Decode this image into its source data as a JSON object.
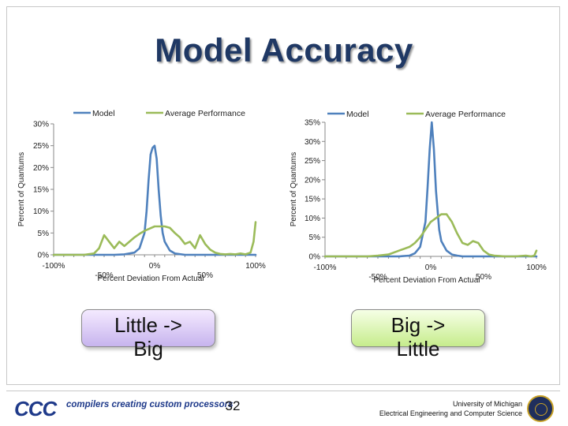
{
  "slide": {
    "title": "Model Accuracy",
    "page_number": "32",
    "callouts": {
      "left": [
        "Little ->",
        "Big"
      ],
      "right": [
        "Big ->",
        "Little"
      ]
    },
    "footer": {
      "logo_text": "CCC",
      "tagline": "compilers creating custom processors",
      "university_line1": "University of Michigan",
      "university_line2": "Electrical Engineering and Computer Science"
    }
  },
  "colors": {
    "model": "#4f81bd",
    "average_performance": "#9bbb59",
    "title": "#1f3864"
  },
  "chart_data": [
    {
      "type": "line",
      "xlabel": "Percent Deviation From Actual",
      "ylabel": "Percent of Quantums",
      "xlim": [
        -100,
        100
      ],
      "ylim": [
        0,
        30
      ],
      "x_ticks": [
        -100,
        -50,
        0,
        50,
        100
      ],
      "x_tick_labels": [
        "-100%",
        "-50%",
        "0%",
        "50%",
        "100%"
      ],
      "y_ticks": [
        0,
        5,
        10,
        15,
        20,
        25,
        30
      ],
      "y_tick_labels": [
        "0%",
        "5%",
        "10%",
        "15%",
        "20%",
        "25%",
        "30%"
      ],
      "legend": "top",
      "grid": false,
      "series": [
        {
          "name": "Model",
          "color": "#4f81bd",
          "x": [
            -100,
            -80,
            -60,
            -40,
            -30,
            -20,
            -15,
            -10,
            -8,
            -6,
            -4,
            -2,
            0,
            2,
            4,
            6,
            8,
            10,
            15,
            20,
            30,
            40,
            60,
            80,
            100
          ],
          "y": [
            0,
            0,
            0,
            0,
            0.1,
            0.5,
            1.5,
            5,
            10,
            17,
            23,
            24.5,
            25,
            22,
            15,
            9,
            5,
            3,
            1,
            0.3,
            0,
            0,
            0,
            0,
            0
          ]
        },
        {
          "name": "Average Performance",
          "color": "#9bbb59",
          "x": [
            -100,
            -90,
            -80,
            -70,
            -60,
            -55,
            -50,
            -45,
            -40,
            -35,
            -30,
            -25,
            -20,
            -15,
            -10,
            -5,
            0,
            5,
            10,
            15,
            20,
            25,
            30,
            35,
            40,
            45,
            50,
            55,
            60,
            65,
            70,
            75,
            80,
            85,
            90,
            95,
            98,
            100
          ],
          "y": [
            0,
            0,
            0,
            0,
            0.3,
            1.5,
            4.5,
            3,
            1.5,
            3,
            2,
            3,
            4,
            4.8,
            5.5,
            6,
            6.5,
            6.5,
            6.5,
            6.2,
            5,
            4,
            2.5,
            3,
            1.5,
            4.5,
            2.5,
            1.2,
            0.5,
            0.2,
            0.1,
            0.2,
            0.1,
            0.3,
            0.1,
            0.5,
            3,
            7.5
          ]
        }
      ]
    },
    {
      "type": "line",
      "xlabel": "Percent Deviation From Actual",
      "ylabel": "Percent of Quantums",
      "xlim": [
        -100,
        100
      ],
      "ylim": [
        0,
        35
      ],
      "x_ticks": [
        -100,
        -50,
        0,
        50,
        100
      ],
      "x_tick_labels": [
        "-100%",
        "-50%",
        "0%",
        "50%",
        "100%"
      ],
      "y_ticks": [
        0,
        5,
        10,
        15,
        20,
        25,
        30,
        35
      ],
      "y_tick_labels": [
        "0%",
        "5%",
        "10%",
        "15%",
        "20%",
        "25%",
        "30%",
        "35%"
      ],
      "legend": "top",
      "grid": false,
      "series": [
        {
          "name": "Model",
          "color": "#4f81bd",
          "x": [
            -100,
            -80,
            -60,
            -40,
            -30,
            -20,
            -15,
            -10,
            -5,
            -3,
            -1,
            1,
            3,
            5,
            8,
            10,
            15,
            20,
            25,
            30,
            40,
            50,
            60,
            80,
            100
          ],
          "y": [
            0,
            0,
            0,
            0,
            0,
            0.2,
            0.8,
            2.5,
            9,
            18,
            28,
            35,
            28,
            17,
            7,
            4,
            1.5,
            0.5,
            0.2,
            0,
            0,
            0,
            0,
            0,
            0
          ]
        },
        {
          "name": "Average Performance",
          "color": "#9bbb59",
          "x": [
            -100,
            -80,
            -60,
            -50,
            -40,
            -30,
            -25,
            -20,
            -15,
            -10,
            -5,
            0,
            5,
            10,
            15,
            20,
            25,
            30,
            35,
            40,
            45,
            50,
            55,
            60,
            70,
            80,
            90,
            95,
            98,
            100
          ],
          "y": [
            0,
            0,
            0,
            0.2,
            0.5,
            1.5,
            2,
            2.5,
            3.5,
            5,
            7,
            9,
            10,
            11,
            11,
            9,
            6,
            3.5,
            3,
            4,
            3.5,
            1.5,
            0.5,
            0.2,
            0,
            0,
            0.2,
            0,
            0.2,
            1.5
          ]
        }
      ]
    }
  ]
}
